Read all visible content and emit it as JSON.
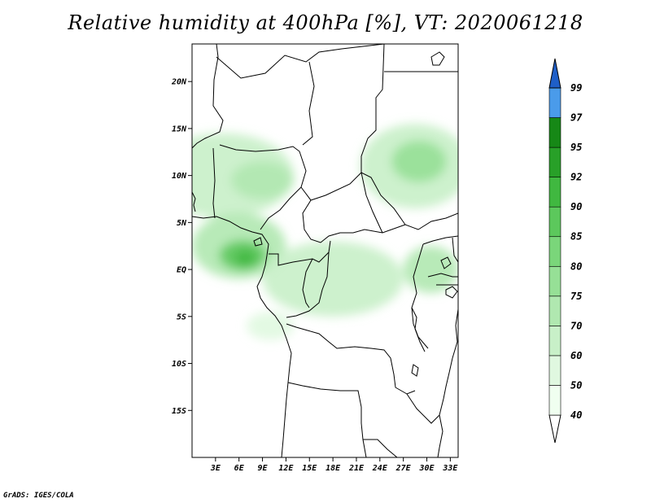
{
  "title": "Relative humidity at 400hPa [%], VT: 2020061218",
  "credit": "GrADS: IGES/COLA",
  "map": {
    "lat_range": [
      -20,
      24
    ],
    "lon_range": [
      0,
      34
    ],
    "lat_ticks": [
      {
        "value": 20,
        "label": "20N"
      },
      {
        "value": 15,
        "label": "15N"
      },
      {
        "value": 10,
        "label": "10N"
      },
      {
        "value": 5,
        "label": "5N"
      },
      {
        "value": 0,
        "label": "EQ"
      },
      {
        "value": -5,
        "label": "5S"
      },
      {
        "value": -10,
        "label": "10S"
      },
      {
        "value": -15,
        "label": "15S"
      }
    ],
    "lon_ticks": [
      {
        "value": 3,
        "label": "3E"
      },
      {
        "value": 6,
        "label": "6E"
      },
      {
        "value": 9,
        "label": "9E"
      },
      {
        "value": 12,
        "label": "12E"
      },
      {
        "value": 15,
        "label": "15E"
      },
      {
        "value": 18,
        "label": "18E"
      },
      {
        "value": 21,
        "label": "21E"
      },
      {
        "value": 24,
        "label": "24E"
      },
      {
        "value": 27,
        "label": "27E"
      },
      {
        "value": 30,
        "label": "30E"
      },
      {
        "value": 33,
        "label": "33E"
      }
    ]
  },
  "colorbar": {
    "levels": [
      {
        "label": "40",
        "color": "#f0fff0"
      },
      {
        "label": "50",
        "color": "#e0f8e0"
      },
      {
        "label": "60",
        "color": "#c8f0c8"
      },
      {
        "label": "70",
        "color": "#b0e8b0"
      },
      {
        "label": "75",
        "color": "#96e096"
      },
      {
        "label": "80",
        "color": "#7ad67a"
      },
      {
        "label": "85",
        "color": "#5cc85c"
      },
      {
        "label": "90",
        "color": "#40b840"
      },
      {
        "label": "92",
        "color": "#28a028"
      },
      {
        "label": "95",
        "color": "#168816"
      },
      {
        "label": "97",
        "color": "#4a9bea"
      },
      {
        "label": "99",
        "color": "#2a78dc"
      }
    ],
    "above_color": "#1f5fc8"
  },
  "humidity_regions": [
    {
      "name": "west-africa-band",
      "lon": 4,
      "lat": 10,
      "rlon": 9,
      "rlat": 4.5,
      "level": 2
    },
    {
      "name": "nigeria-core",
      "lon": 9,
      "lat": 9.5,
      "rlon": 4,
      "rlat": 2,
      "level": 3
    },
    {
      "name": "gulf-of-guinea",
      "lon": 6,
      "lat": 2.5,
      "rlon": 6,
      "rlat": 3.5,
      "level": 3
    },
    {
      "name": "cameroon-max",
      "lon": 6.5,
      "lat": 1.5,
      "rlon": 3,
      "rlat": 1.6,
      "level": 6
    },
    {
      "name": "gabon-peak",
      "lon": 6.8,
      "lat": 1.2,
      "rlon": 1.3,
      "rlat": 0.9,
      "level": 7
    },
    {
      "name": "congo-basin",
      "lon": 18,
      "lat": -1,
      "rlon": 9,
      "rlat": 4,
      "level": 2
    },
    {
      "name": "sudan-band",
      "lon": 28.5,
      "lat": 11,
      "rlon": 7,
      "rlat": 4.5,
      "level": 2
    },
    {
      "name": "sudan-core",
      "lon": 29,
      "lat": 11.5,
      "rlon": 3.5,
      "rlat": 2.2,
      "level": 4
    },
    {
      "name": "east-africa",
      "lon": 30.5,
      "lat": 0,
      "rlon": 3.5,
      "rlat": 2.5,
      "level": 3
    },
    {
      "name": "angola-coast",
      "lon": 10,
      "lat": -6,
      "rlon": 3,
      "rlat": 1.5,
      "level": 1
    }
  ]
}
